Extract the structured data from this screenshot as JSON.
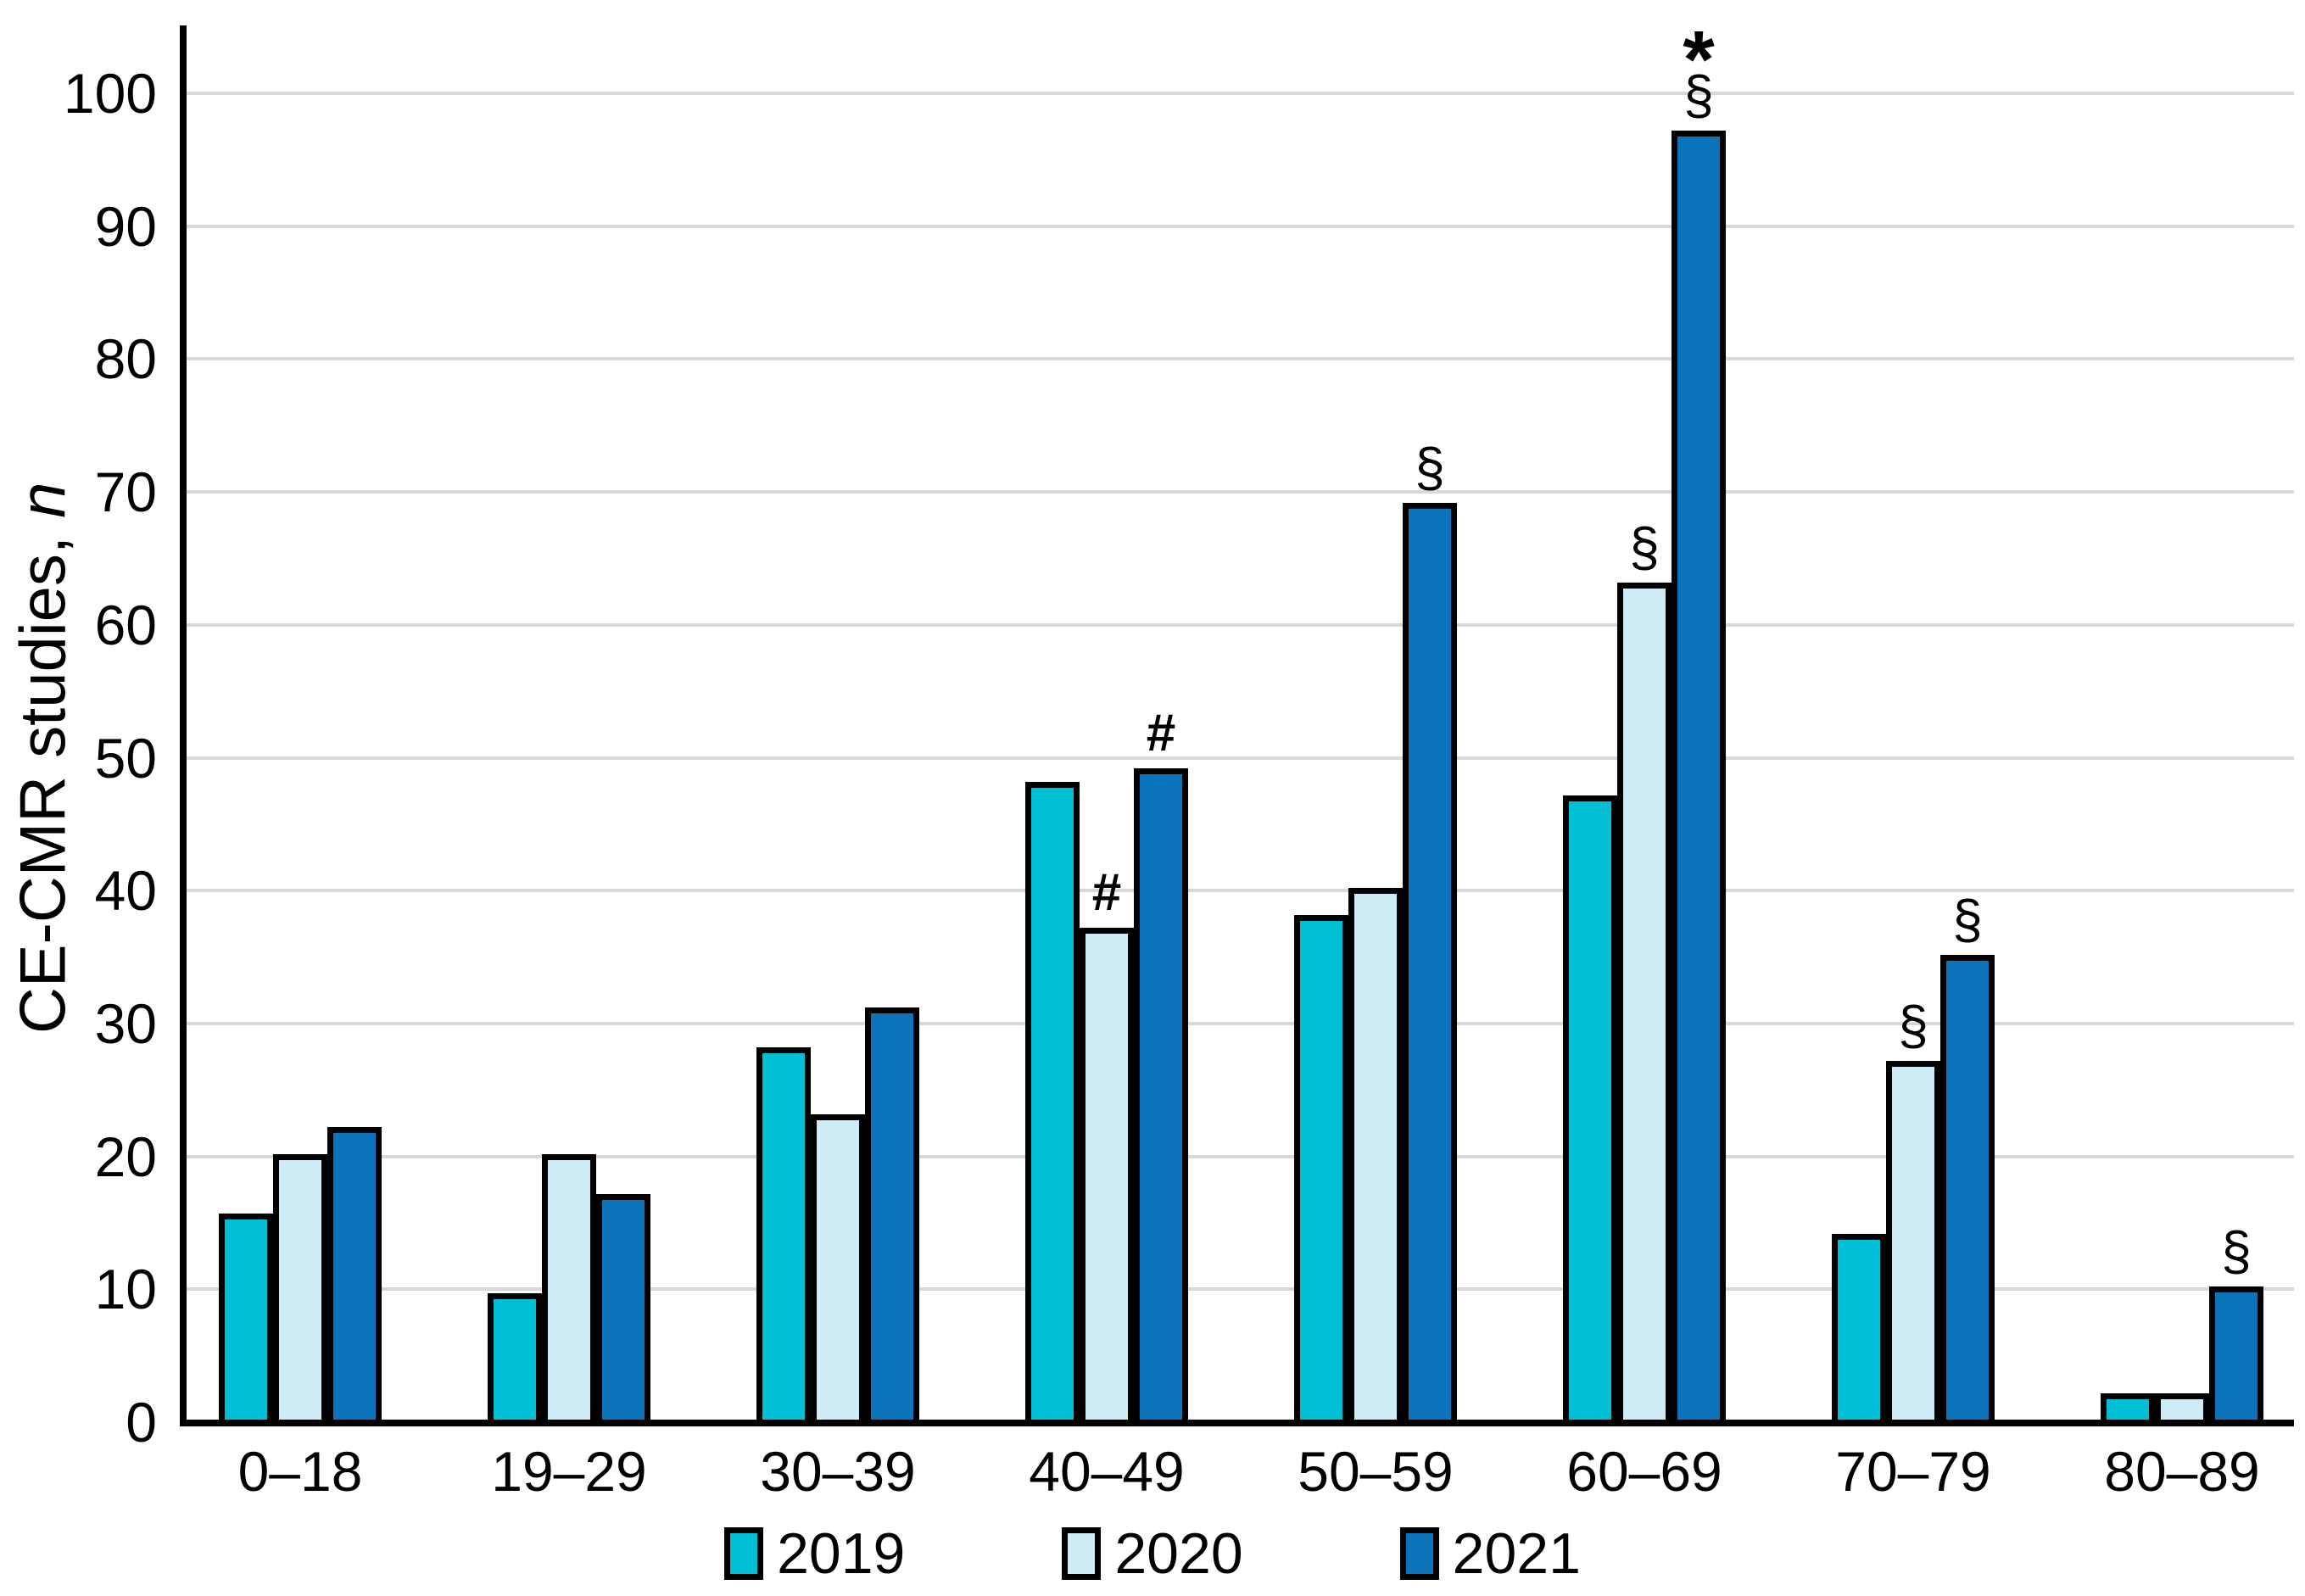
{
  "chart_data": {
    "type": "bar",
    "title": "",
    "ylabel_regular": "CE-CMR studies, ",
    "ylabel_italic": "n",
    "xlabel": "",
    "ylim": [
      0,
      100
    ],
    "ytick_step": 10,
    "yticks": [
      0,
      10,
      20,
      30,
      40,
      50,
      60,
      70,
      80,
      90,
      100
    ],
    "categories": [
      "0–18",
      "19–29",
      "30–39",
      "40–49",
      "50–59",
      "60–69",
      "70–79",
      "80–89"
    ],
    "series": [
      {
        "name": "2019",
        "color": "#00bed3",
        "values": [
          15.5,
          9.5,
          28,
          48,
          38,
          47,
          14,
          2
        ]
      },
      {
        "name": "2020",
        "color": "#cdecf6",
        "values": [
          20,
          20,
          23,
          37,
          40,
          63,
          27,
          2
        ]
      },
      {
        "name": "2021",
        "color": "#0b73ba",
        "values": [
          22,
          17,
          31,
          49,
          69,
          97,
          35,
          10
        ]
      }
    ],
    "annotations": [
      {
        "category": "40–49",
        "series": "2020",
        "symbols": [
          "#"
        ]
      },
      {
        "category": "40–49",
        "series": "2021",
        "symbols": [
          "#"
        ]
      },
      {
        "category": "50–59",
        "series": "2021",
        "symbols": [
          "§"
        ]
      },
      {
        "category": "60–69",
        "series": "2020",
        "symbols": [
          "§"
        ]
      },
      {
        "category": "60–69",
        "series": "2021",
        "symbols": [
          "*",
          "§"
        ]
      },
      {
        "category": "70–79",
        "series": "2020",
        "symbols": [
          "§"
        ]
      },
      {
        "category": "70–79",
        "series": "2021",
        "symbols": [
          "§"
        ]
      },
      {
        "category": "80–89",
        "series": "2021",
        "symbols": [
          "§"
        ]
      }
    ],
    "legend_position": "bottom",
    "grid": "horizontal",
    "colors": {
      "axis": "#000000",
      "gridline": "#d8d8d8",
      "bar_border": "#000000",
      "background": "#ffffff",
      "text": "#000000"
    }
  }
}
